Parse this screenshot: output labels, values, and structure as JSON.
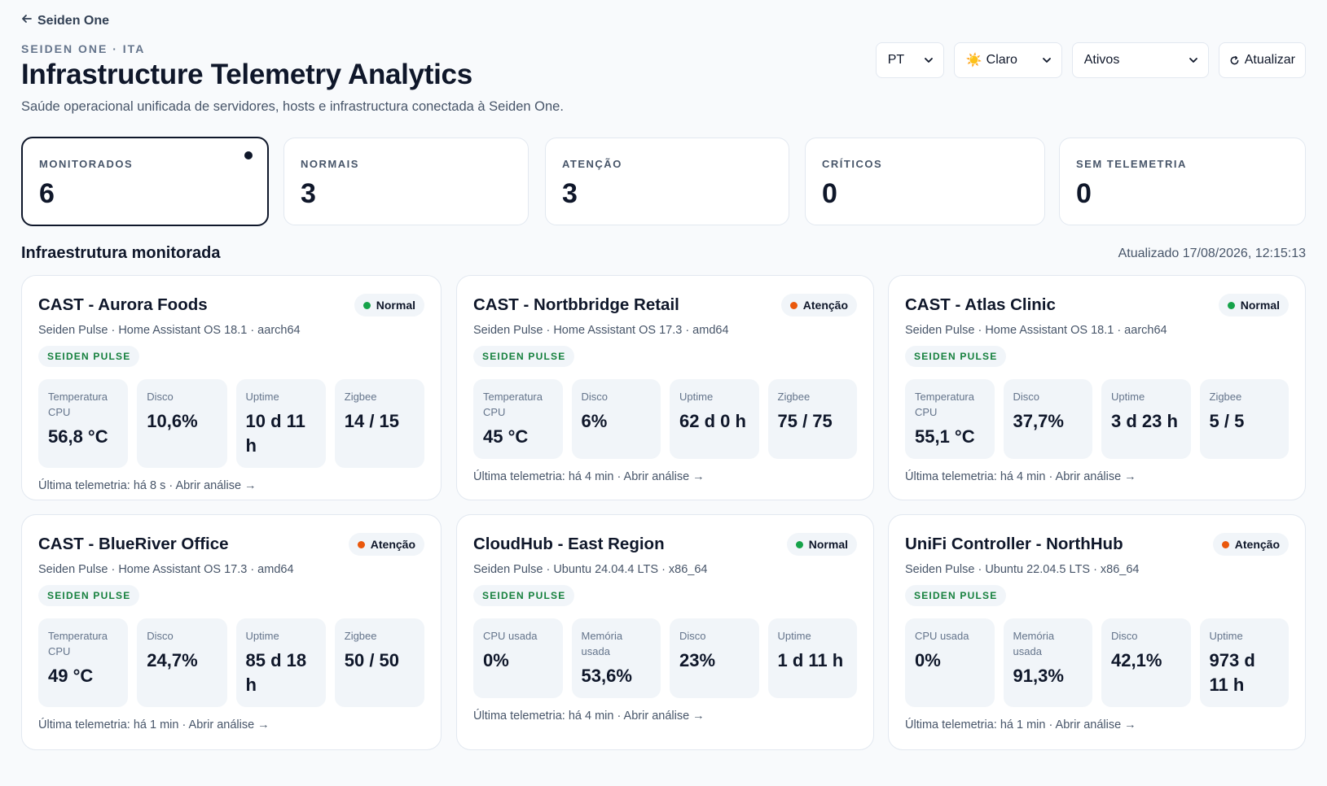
{
  "back": {
    "label": "Seiden One"
  },
  "header": {
    "eyebrow": "SEIDEN ONE · ITA",
    "title": "Infrastructure Telemetry Analytics",
    "subtitle": "Saúde operacional unificada de servidores, hosts e infrastructura conectada à Seiden One."
  },
  "controls": {
    "language": "PT",
    "theme_icon": "☀️",
    "theme": "Claro",
    "filter": "Ativos",
    "refresh": "Atualizar"
  },
  "stats": [
    {
      "label": "MONITORADOS",
      "value": "6"
    },
    {
      "label": "NORMAIS",
      "value": "3"
    },
    {
      "label": "ATENÇÃO",
      "value": "3"
    },
    {
      "label": "CRÍTICOS",
      "value": "0"
    },
    {
      "label": "SEM TELEMETRIA",
      "value": "0"
    }
  ],
  "section": {
    "title": "Infraestrutura monitorada",
    "updated": "Atualizado 17/08/2026, 12:15:13"
  },
  "colors": {
    "normal": "#16a34a",
    "attention": "#ea580c"
  },
  "cards": [
    {
      "title": "CAST - Aurora Foods",
      "status": "Normal",
      "subtitle": "Seiden Pulse · Home Assistant OS 18.1 · aarch64",
      "tag": "SEIDEN PULSE",
      "metrics": [
        {
          "label": "Temperatura CPU",
          "value": "56,8 °C"
        },
        {
          "label": "Disco",
          "value": "10,6%"
        },
        {
          "label": "Uptime",
          "value": "10 d 11 h"
        },
        {
          "label": "Zigbee",
          "value": "14 / 15"
        }
      ],
      "footer": "Última telemetria: há 8 s",
      "open": "Abrir análise →"
    },
    {
      "title": "CAST - Nortbbridge Retail",
      "status": "Atenção",
      "subtitle": "Seiden Pulse · Home Assistant OS 17.3 · amd64",
      "tag": "SEIDEN PULSE",
      "metrics": [
        {
          "label": "Temperatura CPU",
          "value": "45 °C"
        },
        {
          "label": "Disco",
          "value": "6%"
        },
        {
          "label": "Uptime",
          "value": "62 d 0 h"
        },
        {
          "label": "Zigbee",
          "value": "75 / 75"
        }
      ],
      "footer": "Última telemetria: há 4 min",
      "open": "Abrir análise →"
    },
    {
      "title": "CAST - Atlas Clinic",
      "status": "Normal",
      "subtitle": "Seiden Pulse · Home Assistant OS 18.1 · aarch64",
      "tag": "SEIDEN PULSE",
      "metrics": [
        {
          "label": "Temperatura CPU",
          "value": "55,1 °C"
        },
        {
          "label": "Disco",
          "value": "37,7%"
        },
        {
          "label": "Uptime",
          "value": "3 d 23 h"
        },
        {
          "label": "Zigbee",
          "value": "5 / 5"
        }
      ],
      "footer": "Última telemetria: há 4 min",
      "open": "Abrir análise →"
    },
    {
      "title": "CAST - BlueRiver Office",
      "status": "Atenção",
      "subtitle": "Seiden Pulse · Home Assistant OS 17.3 · amd64",
      "tag": "SEIDEN PULSE",
      "metrics": [
        {
          "label": "Temperatura CPU",
          "value": "49 °C"
        },
        {
          "label": "Disco",
          "value": "24,7%"
        },
        {
          "label": "Uptime",
          "value": "85 d 18 h"
        },
        {
          "label": "Zigbee",
          "value": "50 / 50"
        }
      ],
      "footer": "Última telemetria: há 1 min",
      "open": "Abrir análise →"
    },
    {
      "title": "CloudHub - East Region",
      "status": "Normal",
      "subtitle": "Seiden Pulse · Ubuntu 24.04.4 LTS · x86_64",
      "tag": "SEIDEN PULSE",
      "metrics": [
        {
          "label": "CPU usada",
          "value": "0%"
        },
        {
          "label": "Memória usada",
          "value": "53,6%"
        },
        {
          "label": "Disco",
          "value": "23%"
        },
        {
          "label": "Uptime",
          "value": "1 d 11 h"
        }
      ],
      "footer": "Última telemetria: há 4 min",
      "open": "Abrir análise →"
    },
    {
      "title": "UniFi Controller - NorthHub",
      "status": "Atenção",
      "subtitle": "Seiden Pulse · Ubuntu 22.04.5 LTS · x86_64",
      "tag": "SEIDEN PULSE",
      "metrics": [
        {
          "label": "CPU usada",
          "value": "0%"
        },
        {
          "label": "Memória usada",
          "value": "91,3%"
        },
        {
          "label": "Disco",
          "value": "42,1%"
        },
        {
          "label": "Uptime",
          "value": "973 d 11 h"
        }
      ],
      "footer": "Última telemetria: há 1 min",
      "open": "Abrir análise →"
    }
  ]
}
